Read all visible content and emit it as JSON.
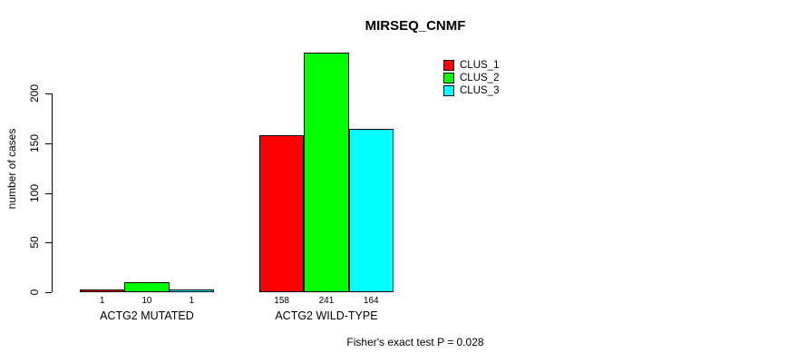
{
  "title": "MIRSEQ_CNMF",
  "annotation": "Fisher's exact test P = 0.028",
  "chart_data": {
    "type": "bar",
    "title": "MIRSEQ_CNMF",
    "xlabel": "",
    "ylabel": "number of cases",
    "ylim": [
      0,
      245
    ],
    "yticks": [
      0,
      50,
      100,
      150,
      200
    ],
    "grid": false,
    "legend_position": "top-right",
    "bar_value_labels_shown": true,
    "categories": [
      "ACTG2 MUTATED",
      "ACTG2 WILD-TYPE"
    ],
    "series": [
      {
        "name": "CLUS_1",
        "color": "#ff0000",
        "values": [
          1,
          158
        ]
      },
      {
        "name": "CLUS_2",
        "color": "#00ff00",
        "values": [
          10,
          241
        ]
      },
      {
        "name": "CLUS_3",
        "color": "#00ffff",
        "values": [
          1,
          164
        ]
      }
    ],
    "annotation": "Fisher's exact test P = 0.028"
  }
}
